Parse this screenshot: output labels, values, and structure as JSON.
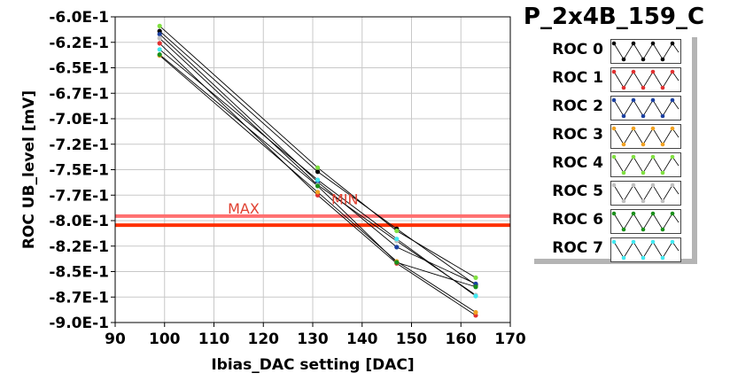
{
  "title": "P_2x4B_159_C",
  "chart_data": {
    "type": "line",
    "title": "P_2x4B_159_C",
    "xlabel": "Ibias_DAC setting [DAC]",
    "ylabel": "ROC UB_level [mV]",
    "xlim": [
      90,
      170
    ],
    "ylim": [
      -0.9,
      -0.6
    ],
    "x_ticks": [
      "90",
      "100",
      "110",
      "120",
      "130",
      "140",
      "150",
      "160",
      "170"
    ],
    "y_ticks": [
      "-6.0E-1",
      "-6.2E-1",
      "-6.5E-1",
      "-6.7E-1",
      "-7.0E-1",
      "-7.2E-1",
      "-7.5E-1",
      "-7.7E-1",
      "-8.0E-1",
      "-8.2E-1",
      "-8.5E-1",
      "-8.7E-1",
      "-9.0E-1"
    ],
    "x": [
      99,
      131,
      147,
      163
    ],
    "series": [
      {
        "name": "ROC 0",
        "color": "#000000",
        "values": [
          -0.614,
          -0.752,
          -0.808,
          -0.863
        ]
      },
      {
        "name": "ROC 1",
        "color": "#e03030",
        "values": [
          -0.626,
          -0.775,
          -0.842,
          -0.893
        ]
      },
      {
        "name": "ROC 2",
        "color": "#1a3fa0",
        "values": [
          -0.617,
          -0.762,
          -0.826,
          -0.862
        ]
      },
      {
        "name": "ROC 3",
        "color": "#f0a020",
        "values": [
          -0.638,
          -0.772,
          -0.84,
          -0.89
        ]
      },
      {
        "name": "ROC 4",
        "color": "#80e040",
        "values": [
          -0.609,
          -0.748,
          -0.81,
          -0.856
        ]
      },
      {
        "name": "ROC 5",
        "color": "#c0c0c0",
        "values": [
          -0.621,
          -0.765,
          -0.82,
          -0.873
        ]
      },
      {
        "name": "ROC 6",
        "color": "#1a8f1a",
        "values": [
          -0.637,
          -0.766,
          -0.841,
          -0.865
        ]
      },
      {
        "name": "ROC 7",
        "color": "#40e8f0",
        "values": [
          -0.632,
          -0.76,
          -0.818,
          -0.874
        ]
      }
    ],
    "reference_lines": [
      {
        "label": "MAX",
        "y": -0.7955,
        "color": "#ff7070"
      },
      {
        "label": "MIN",
        "y": -0.8045,
        "color": "#ff3000"
      }
    ],
    "annotations": [
      {
        "text": "MAX",
        "x": 116,
        "y": -0.793
      },
      {
        "text": "MIN",
        "x": 136.5,
        "y": -0.784
      }
    ],
    "legend_position": "right"
  }
}
